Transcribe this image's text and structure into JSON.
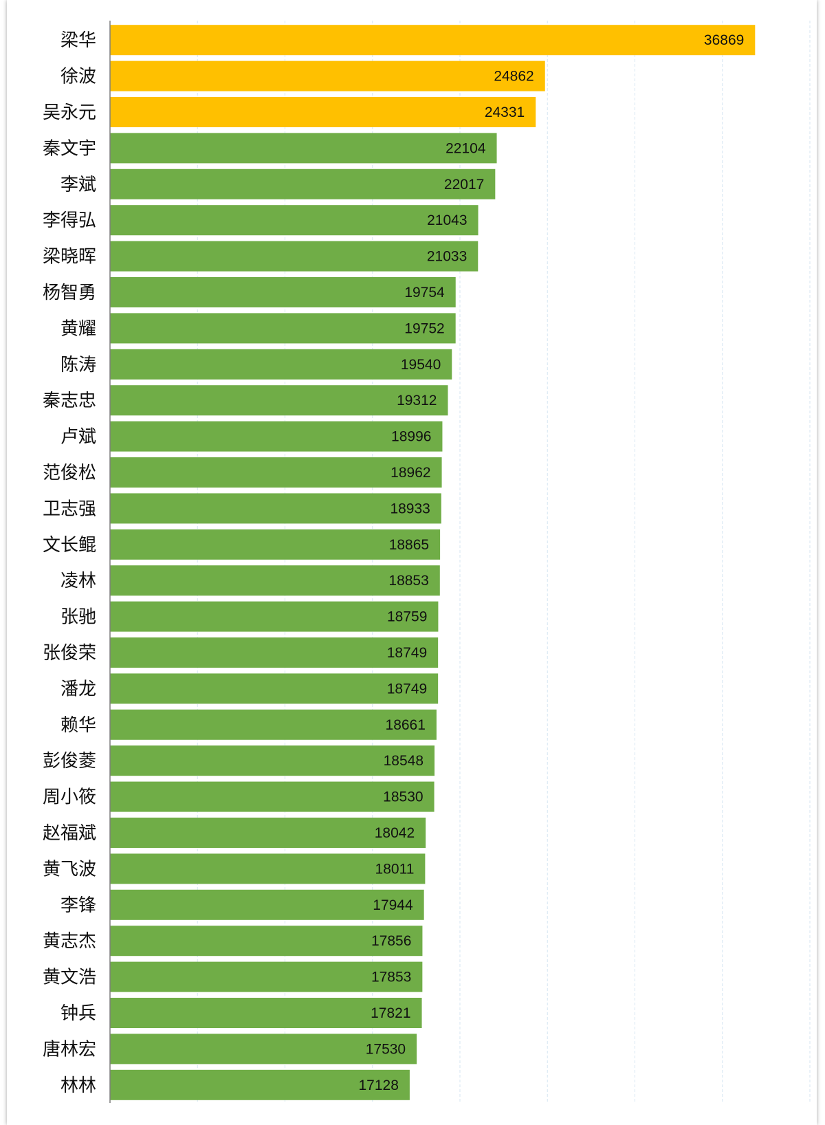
{
  "chart_data": {
    "type": "bar",
    "orientation": "horizontal",
    "title": "",
    "xlabel": "",
    "ylabel": "",
    "xlim": [
      0,
      40000
    ],
    "grid": "vertical dashed",
    "legend": "none",
    "colors": {
      "highlight": "#FFC000",
      "default": "#70AD47",
      "grid": "#d6e6f2",
      "axis": "#7f7f7f"
    },
    "highlight_count": 3,
    "categories": [
      "梁华",
      "徐波",
      "吴永元",
      "秦文宇",
      "李斌",
      "李得弘",
      "梁晓晖",
      "杨智勇",
      "黄耀",
      "陈涛",
      "秦志忠",
      "卢斌",
      "范俊松",
      "卫志强",
      "文长鲲",
      "凌林",
      "张驰",
      "张俊荣",
      "潘龙",
      "赖华",
      "彭俊菱",
      "周小筱",
      "赵福斌",
      "黄飞波",
      "李锋",
      "黄志杰",
      "黄文浩",
      "钟兵",
      "唐林宏",
      "林林"
    ],
    "values": [
      36869,
      24862,
      24331,
      22104,
      22017,
      21043,
      21033,
      19754,
      19752,
      19540,
      19312,
      18996,
      18962,
      18933,
      18865,
      18853,
      18759,
      18749,
      18749,
      18661,
      18548,
      18530,
      18042,
      18011,
      17944,
      17856,
      17853,
      17821,
      17530,
      17128
    ]
  }
}
